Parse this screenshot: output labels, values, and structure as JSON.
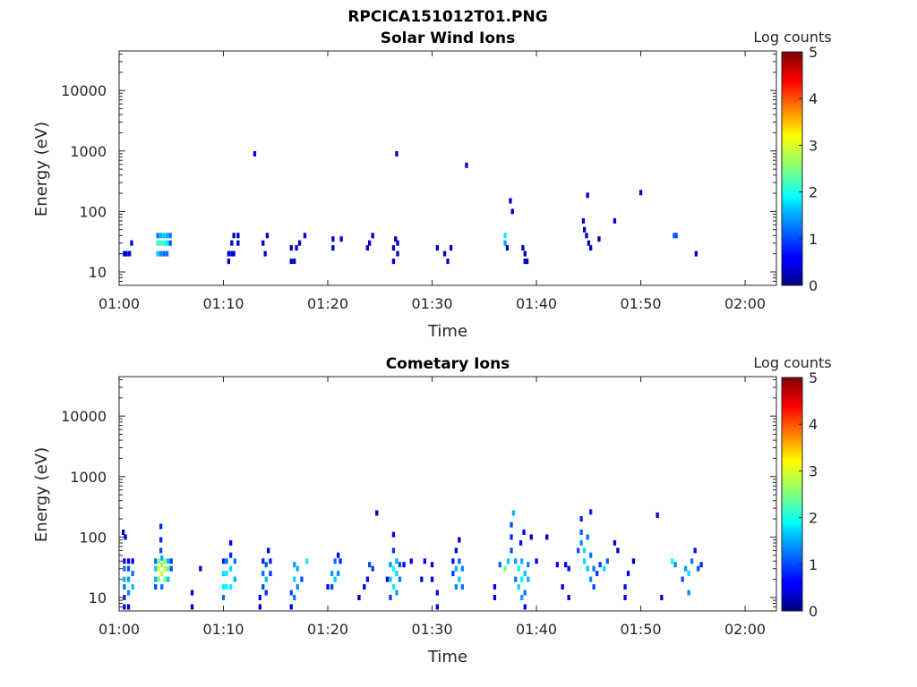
{
  "figure": {
    "title": "RPCICA151012T01.PNG"
  },
  "colormap": "jet",
  "chart_data": [
    {
      "type": "heatmap",
      "title": "Solar Wind Ions",
      "xlabel": "Time",
      "ylabel": "Energy (eV)",
      "x_ticks": [
        "01:00",
        "01:10",
        "01:20",
        "01:30",
        "01:40",
        "01:50",
        "02:00"
      ],
      "xlim": [
        "01:00",
        "02:03"
      ],
      "y_scale": "log",
      "y_ticks": [
        10,
        100,
        1000,
        10000
      ],
      "y_tick_labels": [
        "10",
        "100",
        "1000",
        "10000"
      ],
      "ylim": [
        6,
        45000
      ],
      "colorbar": {
        "label": "Log counts",
        "range": [
          0,
          5
        ],
        "ticks": [
          "0",
          "1",
          "2",
          "3",
          "4",
          "5"
        ]
      },
      "points": [
        [
          0.5,
          20,
          0.4
        ],
        [
          0.7,
          20,
          0.3
        ],
        [
          1.0,
          20,
          0.4
        ],
        [
          1.2,
          30,
          0.4
        ],
        [
          3.7,
          20,
          1.6
        ],
        [
          3.7,
          30,
          2.2
        ],
        [
          3.7,
          40,
          1.2
        ],
        [
          4.0,
          20,
          1.3
        ],
        [
          4.0,
          30,
          2.2
        ],
        [
          4.0,
          40,
          1.5
        ],
        [
          4.3,
          20,
          1.1
        ],
        [
          4.3,
          30,
          2.0
        ],
        [
          4.3,
          40,
          1.6
        ],
        [
          4.6,
          20,
          1.2
        ],
        [
          4.6,
          30,
          1.8
        ],
        [
          4.6,
          40,
          1.5
        ],
        [
          4.9,
          30,
          1.0
        ],
        [
          4.9,
          40,
          1.2
        ],
        [
          10.5,
          15,
          0.3
        ],
        [
          10.5,
          20,
          0.4
        ],
        [
          10.8,
          20,
          0.4
        ],
        [
          10.8,
          30,
          0.3
        ],
        [
          11.0,
          20,
          0.4
        ],
        [
          11.0,
          40,
          0.3
        ],
        [
          11.4,
          30,
          0.3
        ],
        [
          11.4,
          40,
          0.3
        ],
        [
          13.0,
          900,
          0.3
        ],
        [
          13.8,
          30,
          0.3
        ],
        [
          14.0,
          20,
          0.3
        ],
        [
          14.2,
          40,
          0.3
        ],
        [
          16.5,
          15,
          0.3
        ],
        [
          16.5,
          25,
          0.3
        ],
        [
          16.8,
          15,
          0.4
        ],
        [
          17.0,
          25,
          0.3
        ],
        [
          17.3,
          30,
          0.3
        ],
        [
          17.8,
          40,
          0.5
        ],
        [
          20.5,
          25,
          0.3
        ],
        [
          20.5,
          35,
          0.4
        ],
        [
          21.3,
          35,
          0.4
        ],
        [
          23.8,
          25,
          0.3
        ],
        [
          24.0,
          30,
          0.3
        ],
        [
          24.3,
          40,
          0.3
        ],
        [
          26.3,
          15,
          0.4
        ],
        [
          26.3,
          25,
          0.3
        ],
        [
          26.5,
          35,
          0.3
        ],
        [
          26.7,
          20,
          0.3
        ],
        [
          26.7,
          30,
          0.3
        ],
        [
          26.6,
          900,
          0.3
        ],
        [
          30.5,
          25,
          0.3
        ],
        [
          31.2,
          20,
          0.3
        ],
        [
          31.5,
          15,
          0.4
        ],
        [
          31.8,
          25,
          0.3
        ],
        [
          33.3,
          580,
          0.3
        ],
        [
          37.0,
          30,
          1.4
        ],
        [
          37.0,
          40,
          1.8
        ],
        [
          37.2,
          25,
          0.3
        ],
        [
          37.5,
          150,
          0.3
        ],
        [
          37.7,
          100,
          0.3
        ],
        [
          38.7,
          25,
          0.3
        ],
        [
          38.9,
          15,
          0.3
        ],
        [
          38.9,
          20,
          0.3
        ],
        [
          39.1,
          15,
          0.4
        ],
        [
          44.5,
          70,
          0.4
        ],
        [
          44.6,
          50,
          0.3
        ],
        [
          44.8,
          40,
          0.3
        ],
        [
          45.0,
          30,
          0.3
        ],
        [
          44.9,
          185,
          0.3
        ],
        [
          45.2,
          25,
          0.3
        ],
        [
          46.0,
          35,
          0.3
        ],
        [
          47.5,
          70,
          0.4
        ],
        [
          50.0,
          205,
          0.4
        ],
        [
          53.2,
          40,
          1.1
        ],
        [
          53.4,
          40,
          1.0
        ],
        [
          55.3,
          20,
          0.3
        ]
      ]
    },
    {
      "type": "heatmap",
      "title": "Cometary Ions",
      "xlabel": "Time",
      "ylabel": "Energy (eV)",
      "x_ticks": [
        "01:00",
        "01:10",
        "01:20",
        "01:30",
        "01:40",
        "01:50",
        "02:00"
      ],
      "xlim": [
        "01:00",
        "02:03"
      ],
      "y_scale": "log",
      "y_ticks": [
        10,
        100,
        1000,
        10000
      ],
      "y_tick_labels": [
        "10",
        "100",
        "1000",
        "10000"
      ],
      "ylim": [
        6,
        45000
      ],
      "colorbar": {
        "label": "Log counts",
        "range": [
          0,
          5
        ],
        "ticks": [
          "0",
          "1",
          "2",
          "3",
          "4",
          "5"
        ]
      },
      "points": [
        [
          0.4,
          120,
          0.3
        ],
        [
          0.6,
          100,
          0.3
        ],
        [
          0.5,
          7,
          0.4
        ],
        [
          0.5,
          10,
          0.8
        ],
        [
          0.5,
          15,
          1.2
        ],
        [
          0.5,
          20,
          1.5
        ],
        [
          0.5,
          30,
          1.2
        ],
        [
          0.5,
          40,
          0.6
        ],
        [
          0.9,
          7,
          0.4
        ],
        [
          0.9,
          12,
          1.3
        ],
        [
          0.9,
          20,
          1.4
        ],
        [
          0.9,
          30,
          1.0
        ],
        [
          0.9,
          40,
          0.5
        ],
        [
          1.3,
          15,
          1.6
        ],
        [
          1.3,
          25,
          1.2
        ],
        [
          1.3,
          40,
          0.5
        ],
        [
          3.5,
          15,
          1.0
        ],
        [
          3.5,
          20,
          1.5
        ],
        [
          3.5,
          30,
          1.6
        ],
        [
          3.5,
          40,
          1.2
        ],
        [
          3.8,
          20,
          2.5
        ],
        [
          3.8,
          30,
          3.0
        ],
        [
          3.8,
          40,
          2.5
        ],
        [
          4.1,
          15,
          1.2
        ],
        [
          4.1,
          25,
          2.8
        ],
        [
          4.1,
          35,
          2.7
        ],
        [
          4.1,
          45,
          1.5
        ],
        [
          4.0,
          60,
          1.0
        ],
        [
          4.0,
          90,
          0.8
        ],
        [
          4.0,
          150,
          0.8
        ],
        [
          4.4,
          20,
          2.4
        ],
        [
          4.4,
          30,
          2.9
        ],
        [
          4.4,
          40,
          2.6
        ],
        [
          4.7,
          20,
          1.6
        ],
        [
          4.7,
          30,
          2.2
        ],
        [
          4.7,
          40,
          1.5
        ],
        [
          5.0,
          30,
          1.0
        ],
        [
          5.0,
          40,
          0.9
        ],
        [
          7.0,
          7,
          0.4
        ],
        [
          7.0,
          12,
          0.3
        ],
        [
          7.8,
          30,
          0.3
        ],
        [
          10.0,
          10,
          1.2
        ],
        [
          10.0,
          15,
          1.8
        ],
        [
          10.0,
          25,
          1.7
        ],
        [
          10.0,
          40,
          0.8
        ],
        [
          10.3,
          15,
          1.9
        ],
        [
          10.3,
          25,
          1.8
        ],
        [
          10.3,
          40,
          1.2
        ],
        [
          10.7,
          15,
          1.8
        ],
        [
          10.7,
          30,
          1.7
        ],
        [
          10.7,
          50,
          0.8
        ],
        [
          10.7,
          80,
          0.6
        ],
        [
          11.1,
          20,
          1.5
        ],
        [
          11.1,
          40,
          1.2
        ],
        [
          13.5,
          7,
          0.3
        ],
        [
          13.5,
          10,
          0.6
        ],
        [
          13.8,
          15,
          1.0
        ],
        [
          13.8,
          25,
          1.2
        ],
        [
          13.8,
          40,
          0.8
        ],
        [
          14.1,
          12,
          0.8
        ],
        [
          14.1,
          20,
          1.5
        ],
        [
          14.1,
          35,
          1.1
        ],
        [
          14.3,
          60,
          0.6
        ],
        [
          14.5,
          25,
          0.9
        ],
        [
          14.5,
          40,
          0.8
        ],
        [
          16.5,
          7,
          0.4
        ],
        [
          16.5,
          12,
          1.0
        ],
        [
          16.8,
          10,
          1.2
        ],
        [
          16.8,
          20,
          1.7
        ],
        [
          16.8,
          35,
          1.4
        ],
        [
          17.1,
          15,
          1.3
        ],
        [
          17.1,
          30,
          1.5
        ],
        [
          17.5,
          20,
          1.0
        ],
        [
          18.0,
          40,
          1.8
        ],
        [
          20.0,
          15,
          0.6
        ],
        [
          20.4,
          15,
          1.0
        ],
        [
          20.4,
          25,
          1.4
        ],
        [
          20.7,
          20,
          1.6
        ],
        [
          20.7,
          40,
          1.2
        ],
        [
          21.0,
          25,
          1.3
        ],
        [
          21.0,
          50,
          0.6
        ],
        [
          21.2,
          40,
          0.8
        ],
        [
          23.0,
          10,
          0.3
        ],
        [
          23.5,
          15,
          0.5
        ],
        [
          23.8,
          20,
          0.7
        ],
        [
          24.0,
          35,
          1.0
        ],
        [
          24.3,
          30,
          0.9
        ],
        [
          24.7,
          250,
          0.3
        ],
        [
          25.7,
          20,
          0.6
        ],
        [
          26.0,
          10,
          0.9
        ],
        [
          26.0,
          20,
          1.6
        ],
        [
          26.0,
          35,
          1.4
        ],
        [
          26.3,
          15,
          1.8
        ],
        [
          26.3,
          30,
          1.9
        ],
        [
          26.3,
          60,
          0.9
        ],
        [
          26.3,
          110,
          0.6
        ],
        [
          26.6,
          12,
          1.4
        ],
        [
          26.6,
          25,
          1.7
        ],
        [
          26.6,
          40,
          1.5
        ],
        [
          26.9,
          20,
          1.2
        ],
        [
          26.9,
          35,
          1.0
        ],
        [
          27.3,
          35,
          0.6
        ],
        [
          28.0,
          40,
          0.5
        ],
        [
          29.3,
          40,
          0.6
        ],
        [
          29.0,
          20,
          0.4
        ],
        [
          30.0,
          20,
          0.5
        ],
        [
          30.0,
          35,
          0.6
        ],
        [
          30.5,
          7,
          0.5
        ],
        [
          30.5,
          12,
          0.6
        ],
        [
          32.0,
          25,
          0.9
        ],
        [
          32.0,
          40,
          0.7
        ],
        [
          32.3,
          15,
          1.3
        ],
        [
          32.3,
          30,
          1.5
        ],
        [
          32.6,
          20,
          1.6
        ],
        [
          32.6,
          40,
          1.1
        ],
        [
          32.9,
          15,
          1.2
        ],
        [
          32.9,
          30,
          1.3
        ],
        [
          32.3,
          60,
          0.5
        ],
        [
          32.6,
          90,
          0.3
        ],
        [
          36.0,
          10,
          0.4
        ],
        [
          36.0,
          15,
          0.5
        ],
        [
          36.5,
          35,
          1.1
        ],
        [
          37.0,
          30,
          2.4
        ],
        [
          37.3,
          40,
          1.6
        ],
        [
          37.6,
          60,
          1.0
        ],
        [
          37.6,
          100,
          0.8
        ],
        [
          37.6,
          160,
          1.0
        ],
        [
          37.8,
          250,
          1.5
        ],
        [
          38.0,
          20,
          1.2
        ],
        [
          38.0,
          40,
          1.4
        ],
        [
          38.3,
          15,
          1.7
        ],
        [
          38.3,
          30,
          1.9
        ],
        [
          38.6,
          10,
          1.4
        ],
        [
          38.6,
          20,
          1.8
        ],
        [
          38.6,
          40,
          1.5
        ],
        [
          38.9,
          7,
          0.6
        ],
        [
          38.9,
          12,
          1.2
        ],
        [
          38.9,
          25,
          1.6
        ],
        [
          39.2,
          20,
          1.5
        ],
        [
          39.2,
          35,
          1.3
        ],
        [
          38.5,
          80,
          0.7
        ],
        [
          38.8,
          120,
          0.6
        ],
        [
          40.0,
          40,
          0.6
        ],
        [
          39.5,
          100,
          0.3
        ],
        [
          41.0,
          100,
          0.3
        ],
        [
          42.0,
          35,
          0.6
        ],
        [
          42.5,
          15,
          0.5
        ],
        [
          42.8,
          35,
          0.6
        ],
        [
          43.1,
          10,
          0.4
        ],
        [
          43.1,
          30,
          0.6
        ],
        [
          44.0,
          60,
          1.0
        ],
        [
          44.3,
          80,
          1.3
        ],
        [
          44.3,
          120,
          1.1
        ],
        [
          44.3,
          200,
          0.8
        ],
        [
          44.6,
          40,
          1.7
        ],
        [
          44.6,
          60,
          1.7
        ],
        [
          44.9,
          30,
          1.6
        ],
        [
          44.9,
          100,
          1.2
        ],
        [
          45.2,
          20,
          1.3
        ],
        [
          45.2,
          50,
          1.2
        ],
        [
          45.2,
          260,
          0.8
        ],
        [
          45.5,
          15,
          1.0
        ],
        [
          45.5,
          30,
          1.2
        ],
        [
          45.8,
          25,
          0.9
        ],
        [
          46.1,
          35,
          0.9
        ],
        [
          46.5,
          30,
          1.7
        ],
        [
          46.8,
          40,
          1.1
        ],
        [
          47.5,
          80,
          0.4
        ],
        [
          47.8,
          60,
          0.3
        ],
        [
          48.5,
          10,
          0.6
        ],
        [
          48.5,
          15,
          0.7
        ],
        [
          48.8,
          25,
          0.6
        ],
        [
          49.3,
          40,
          0.3
        ],
        [
          51.6,
          230,
          0.3
        ],
        [
          52.0,
          10,
          0.4
        ],
        [
          53.0,
          40,
          2.0
        ],
        [
          53.3,
          35,
          1.3
        ],
        [
          54.0,
          20,
          1.0
        ],
        [
          54.3,
          30,
          1.4
        ],
        [
          54.6,
          12,
          1.3
        ],
        [
          54.6,
          25,
          1.7
        ],
        [
          54.9,
          40,
          1.2
        ],
        [
          55.2,
          60,
          0.7
        ],
        [
          55.5,
          30,
          1.0
        ],
        [
          55.8,
          35,
          0.8
        ]
      ]
    }
  ]
}
